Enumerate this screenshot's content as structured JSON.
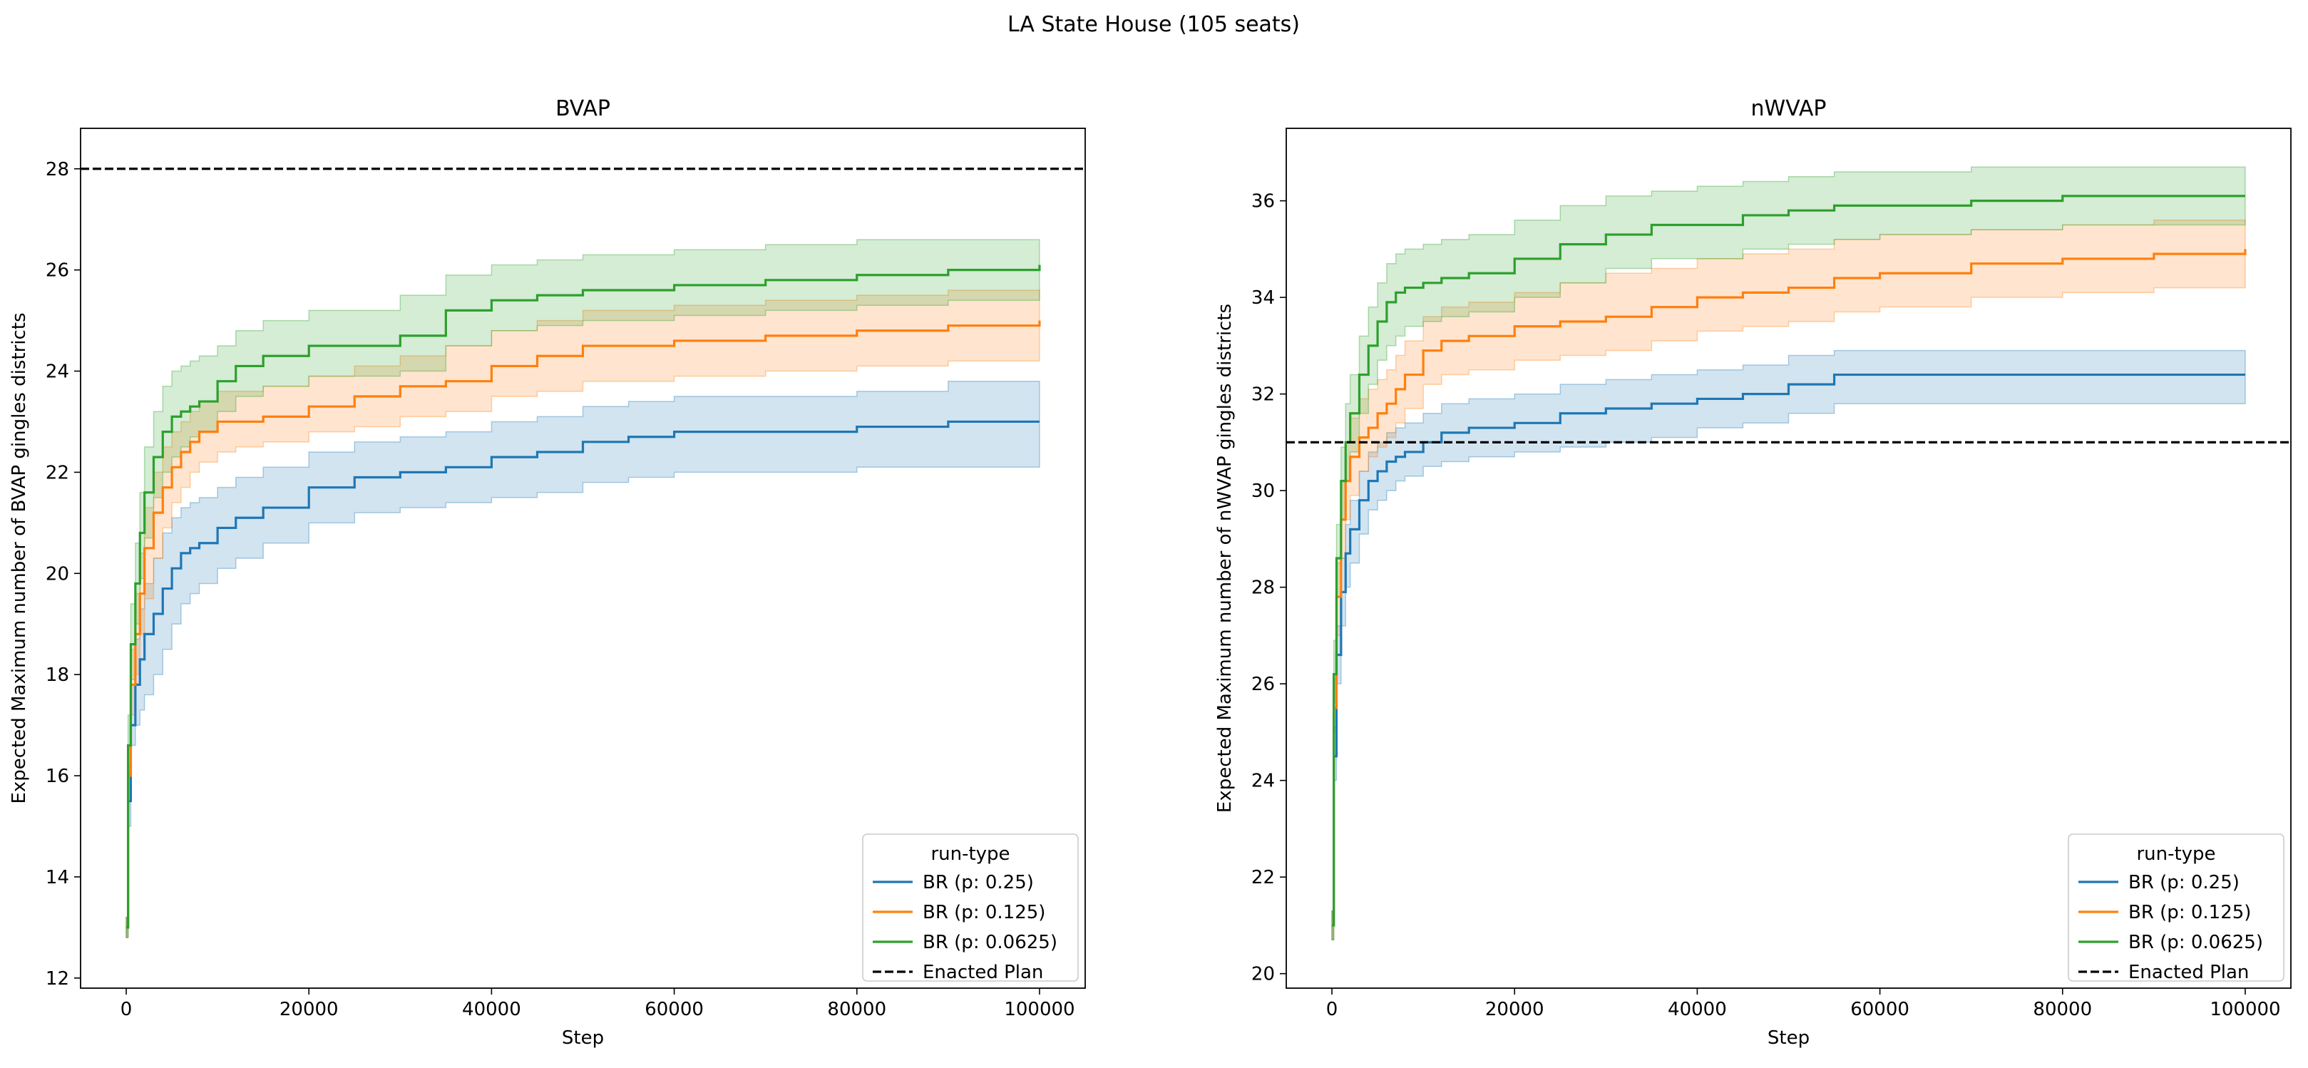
{
  "figure": {
    "suptitle": "LA State House (105 seats)"
  },
  "chart_data": [
    {
      "type": "line",
      "title": "BVAP",
      "xlabel": "Step",
      "ylabel": "Expected Maximum number of BVAP gingles districts",
      "xlim": [
        -5000,
        105000
      ],
      "ylim": [
        11.8,
        28.8
      ],
      "xticks": [
        0,
        20000,
        40000,
        60000,
        80000,
        100000
      ],
      "yticks": [
        12,
        14,
        16,
        18,
        20,
        22,
        24,
        26,
        28
      ],
      "grid": false,
      "legend": {
        "title": "run-type",
        "placement": "lower-right",
        "entries": [
          "BR (p: 0.25)",
          "BR (p: 0.125)",
          "BR (p: 0.0625)",
          "Enacted Plan"
        ]
      },
      "reference_line": {
        "name": "Enacted Plan",
        "y": 28,
        "color": "#000000",
        "style": "dashed"
      },
      "series": [
        {
          "name": "BR (p: 0.25)",
          "color": "#1f77b4",
          "x": [
            0,
            200,
            500,
            1000,
            1500,
            2000,
            3000,
            4000,
            5000,
            6000,
            7000,
            8000,
            10000,
            12000,
            15000,
            20000,
            25000,
            30000,
            35000,
            40000,
            45000,
            50000,
            55000,
            60000,
            70000,
            80000,
            90000,
            100000
          ],
          "y": [
            13.0,
            15.5,
            17.0,
            17.8,
            18.3,
            18.8,
            19.2,
            19.7,
            20.1,
            20.4,
            20.5,
            20.6,
            20.9,
            21.1,
            21.3,
            21.7,
            21.9,
            22.0,
            22.1,
            22.3,
            22.4,
            22.6,
            22.7,
            22.8,
            22.8,
            22.9,
            23.0,
            23.0
          ],
          "lower": [
            12.8,
            15.0,
            16.6,
            17.0,
            17.3,
            17.6,
            18.0,
            18.5,
            19.0,
            19.4,
            19.6,
            19.8,
            20.1,
            20.3,
            20.6,
            21.0,
            21.2,
            21.3,
            21.4,
            21.5,
            21.6,
            21.8,
            21.9,
            22.0,
            22.0,
            22.1,
            22.1,
            22.2
          ],
          "upper": [
            13.2,
            16.2,
            17.8,
            18.7,
            19.3,
            19.8,
            20.3,
            20.8,
            21.1,
            21.3,
            21.4,
            21.5,
            21.7,
            21.9,
            22.1,
            22.4,
            22.6,
            22.7,
            22.8,
            23.0,
            23.1,
            23.3,
            23.4,
            23.5,
            23.5,
            23.6,
            23.8,
            23.8
          ]
        },
        {
          "name": "BR (p: 0.125)",
          "color": "#ff7f0e",
          "x": [
            0,
            200,
            500,
            1000,
            1500,
            2000,
            3000,
            4000,
            5000,
            6000,
            7000,
            8000,
            10000,
            12000,
            15000,
            20000,
            25000,
            30000,
            35000,
            40000,
            45000,
            50000,
            55000,
            60000,
            70000,
            80000,
            90000,
            100000
          ],
          "y": [
            13.0,
            16.0,
            17.8,
            18.8,
            19.6,
            20.5,
            21.2,
            21.7,
            22.1,
            22.4,
            22.6,
            22.8,
            23.0,
            23.0,
            23.1,
            23.3,
            23.5,
            23.7,
            23.8,
            24.1,
            24.3,
            24.5,
            24.5,
            24.6,
            24.7,
            24.8,
            24.9,
            25.0
          ],
          "lower": [
            12.8,
            15.6,
            17.2,
            18.0,
            18.8,
            19.5,
            20.3,
            20.9,
            21.4,
            21.7,
            22.0,
            22.2,
            22.4,
            22.5,
            22.6,
            22.8,
            22.9,
            23.1,
            23.2,
            23.5,
            23.6,
            23.8,
            23.8,
            23.9,
            24.0,
            24.1,
            24.2,
            24.3
          ],
          "upper": [
            13.2,
            16.6,
            18.5,
            19.6,
            20.4,
            21.3,
            22.0,
            22.5,
            22.8,
            23.0,
            23.2,
            23.4,
            23.6,
            23.6,
            23.7,
            23.9,
            24.1,
            24.3,
            24.5,
            24.8,
            25.0,
            25.2,
            25.2,
            25.3,
            25.4,
            25.5,
            25.6,
            25.6
          ]
        },
        {
          "name": "BR (p: 0.0625)",
          "color": "#2ca02c",
          "x": [
            0,
            200,
            500,
            1000,
            1500,
            2000,
            3000,
            4000,
            5000,
            6000,
            7000,
            8000,
            10000,
            12000,
            15000,
            20000,
            25000,
            30000,
            35000,
            40000,
            45000,
            50000,
            55000,
            60000,
            70000,
            80000,
            90000,
            100000
          ],
          "y": [
            13.0,
            16.6,
            18.6,
            19.8,
            20.8,
            21.6,
            22.3,
            22.8,
            23.1,
            23.2,
            23.3,
            23.4,
            23.8,
            24.1,
            24.3,
            24.5,
            24.5,
            24.7,
            25.2,
            25.4,
            25.5,
            25.6,
            25.6,
            25.7,
            25.8,
            25.9,
            26.0,
            26.1
          ],
          "lower": [
            12.8,
            16.0,
            17.9,
            19.0,
            19.9,
            20.7,
            21.5,
            22.0,
            22.3,
            22.5,
            22.7,
            22.8,
            23.2,
            23.5,
            23.7,
            23.9,
            23.9,
            24.0,
            24.5,
            24.8,
            24.9,
            25.0,
            25.0,
            25.1,
            25.2,
            25.3,
            25.4,
            25.6
          ],
          "upper": [
            13.2,
            17.2,
            19.4,
            20.6,
            21.6,
            22.5,
            23.2,
            23.7,
            24.0,
            24.1,
            24.2,
            24.3,
            24.5,
            24.8,
            25.0,
            25.2,
            25.2,
            25.5,
            25.9,
            26.1,
            26.2,
            26.3,
            26.3,
            26.4,
            26.5,
            26.6,
            26.6,
            26.6
          ]
        }
      ]
    },
    {
      "type": "line",
      "title": "nWVAP",
      "xlabel": "Step",
      "ylabel": "Expected Maximum number of nWVAP gingles districts",
      "xlim": [
        -5000,
        105000
      ],
      "ylim": [
        19.7,
        37.5
      ],
      "xticks": [
        0,
        20000,
        40000,
        60000,
        80000,
        100000
      ],
      "yticks": [
        20,
        22,
        24,
        26,
        28,
        30,
        32,
        34,
        36
      ],
      "grid": false,
      "legend": {
        "title": "run-type",
        "placement": "lower-right",
        "entries": [
          "BR (p: 0.25)",
          "BR (p: 0.125)",
          "BR (p: 0.0625)",
          "Enacted Plan"
        ]
      },
      "reference_line": {
        "name": "Enacted Plan",
        "y": 31,
        "color": "#000000",
        "style": "dashed"
      },
      "series": [
        {
          "name": "BR (p: 0.25)",
          "color": "#1f77b4",
          "x": [
            0,
            200,
            500,
            1000,
            1500,
            2000,
            3000,
            4000,
            5000,
            6000,
            7000,
            8000,
            10000,
            12000,
            15000,
            20000,
            25000,
            30000,
            35000,
            40000,
            45000,
            50000,
            55000,
            60000,
            70000,
            80000,
            90000,
            100000
          ],
          "y": [
            21.0,
            24.5,
            26.6,
            27.9,
            28.7,
            29.2,
            29.8,
            30.2,
            30.4,
            30.6,
            30.7,
            30.8,
            31.0,
            31.2,
            31.3,
            31.4,
            31.6,
            31.7,
            31.8,
            31.9,
            32.0,
            32.2,
            32.4,
            32.4,
            32.4,
            32.4,
            32.4,
            32.4
          ],
          "lower": [
            20.7,
            24.0,
            26.0,
            27.2,
            28.0,
            28.5,
            29.1,
            29.6,
            29.8,
            30.0,
            30.2,
            30.3,
            30.5,
            30.6,
            30.7,
            30.8,
            30.9,
            31.0,
            31.1,
            31.3,
            31.4,
            31.6,
            31.8,
            31.8,
            31.8,
            31.8,
            31.8,
            31.9
          ],
          "upper": [
            21.3,
            25.1,
            27.2,
            28.6,
            29.3,
            29.8,
            30.4,
            30.8,
            31.0,
            31.2,
            31.3,
            31.4,
            31.6,
            31.8,
            31.9,
            32.0,
            32.2,
            32.3,
            32.4,
            32.5,
            32.6,
            32.8,
            32.9,
            32.9,
            32.9,
            32.9,
            32.9,
            32.9
          ]
        },
        {
          "name": "BR (p: 0.125)",
          "color": "#ff7f0e",
          "x": [
            0,
            200,
            500,
            1000,
            1500,
            2000,
            3000,
            4000,
            5000,
            6000,
            7000,
            8000,
            10000,
            12000,
            15000,
            20000,
            25000,
            30000,
            35000,
            40000,
            45000,
            50000,
            55000,
            60000,
            70000,
            80000,
            90000,
            100000
          ],
          "y": [
            21.0,
            25.5,
            27.8,
            29.4,
            30.2,
            30.7,
            31.1,
            31.3,
            31.6,
            31.8,
            32.1,
            32.4,
            32.9,
            33.1,
            33.2,
            33.4,
            33.5,
            33.6,
            33.8,
            34.0,
            34.1,
            34.2,
            34.4,
            34.5,
            34.7,
            34.8,
            34.9,
            35.0
          ],
          "lower": [
            20.7,
            25.0,
            27.0,
            28.6,
            29.4,
            29.9,
            30.4,
            30.7,
            30.9,
            31.1,
            31.4,
            31.7,
            32.2,
            32.4,
            32.5,
            32.7,
            32.8,
            32.9,
            33.1,
            33.3,
            33.4,
            33.5,
            33.7,
            33.8,
            34.0,
            34.1,
            34.2,
            34.3
          ],
          "upper": [
            21.3,
            26.1,
            28.5,
            30.2,
            31.0,
            31.5,
            31.9,
            32.1,
            32.3,
            32.5,
            32.8,
            33.1,
            33.6,
            33.8,
            33.9,
            34.1,
            34.3,
            34.5,
            34.6,
            34.8,
            34.9,
            35.0,
            35.2,
            35.3,
            35.4,
            35.5,
            35.6,
            35.6
          ]
        },
        {
          "name": "BR (p: 0.0625)",
          "color": "#2ca02c",
          "x": [
            0,
            200,
            500,
            1000,
            1500,
            2000,
            3000,
            4000,
            5000,
            6000,
            7000,
            8000,
            10000,
            12000,
            15000,
            20000,
            25000,
            30000,
            35000,
            40000,
            45000,
            50000,
            55000,
            60000,
            70000,
            80000,
            90000,
            100000
          ],
          "y": [
            21.0,
            26.2,
            28.6,
            30.2,
            31.0,
            31.6,
            32.4,
            33.0,
            33.5,
            33.9,
            34.1,
            34.2,
            34.3,
            34.4,
            34.5,
            34.8,
            35.1,
            35.3,
            35.5,
            35.5,
            35.7,
            35.8,
            35.9,
            35.9,
            36.0,
            36.1,
            36.1,
            36.1
          ],
          "lower": [
            20.7,
            25.6,
            27.8,
            29.4,
            30.2,
            30.8,
            31.6,
            32.2,
            32.7,
            33.0,
            33.2,
            33.4,
            33.5,
            33.6,
            33.7,
            34.0,
            34.3,
            34.6,
            34.8,
            34.8,
            35.0,
            35.1,
            35.2,
            35.3,
            35.4,
            35.5,
            35.5,
            35.5
          ],
          "upper": [
            21.3,
            26.9,
            29.3,
            30.9,
            31.8,
            32.4,
            33.2,
            33.8,
            34.3,
            34.7,
            34.9,
            35.0,
            35.1,
            35.2,
            35.3,
            35.6,
            35.9,
            36.1,
            36.2,
            36.3,
            36.4,
            36.5,
            36.6,
            36.6,
            36.7,
            36.7,
            36.7,
            36.7
          ]
        }
      ]
    }
  ]
}
